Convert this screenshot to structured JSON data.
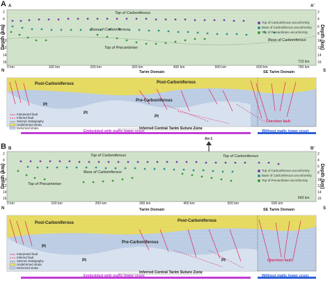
{
  "panels": [
    {
      "label": "A",
      "start": "A",
      "end": "A'",
      "ylabel": "Depth (km)",
      "depth_ticks": [
        "2",
        "4",
        "6",
        "8",
        "10",
        "12",
        "14",
        "16"
      ],
      "x_ticks": [
        "0 km",
        "100 km",
        "200 km",
        "300 km",
        "400 km",
        "500 km",
        "600 km",
        "700 km"
      ],
      "length": "713 km",
      "horizons": {
        "top_carb": "Top of Carboniferous",
        "base_carb": "Base of Carboniferous",
        "top_pre": "Top of Precambrian",
        "base_carb2": "Base of Carboniferous"
      },
      "legend": [
        "Top of Carboniferous unconformity",
        "Base of Carboniferous unconformity",
        "Top of Precambrian unconformity"
      ],
      "n": "N",
      "s": "S",
      "domain_left": "Tarim Domain",
      "domain_right": "SE Tarim Domain",
      "units": {
        "post": "Post-Carboniferous",
        "post2": "Post-Carboniferous",
        "pre": "Pre-Carboniferous",
        "pt": "Pt"
      },
      "fault": "Cherchen fault",
      "suture": "Inferred Central Tarim Suture Zone",
      "crust_left": "Embedded with mafic lower crust",
      "crust_right": "Without mafic lower crust",
      "legend2": [
        "Interpreted fault",
        "Inferred fault",
        "Seismic stratigraphy",
        "Undeformed strata",
        "Deformed strata"
      ]
    },
    {
      "label": "B",
      "start": "B",
      "end": "B'",
      "ylabel": "Depth (km)",
      "depth_ticks": [
        "2",
        "4",
        "6",
        "8",
        "10",
        "12",
        "14",
        "16"
      ],
      "x_ticks": [
        "0 km",
        "100 km",
        "200 km",
        "300 km",
        "400 km",
        "500 km",
        "600 km"
      ],
      "length": "643 km",
      "horizons": {
        "top_carb": "Top of Carboniferous",
        "base_carb": "Base of Carboniferous",
        "top_pre": "Top of Precambrian",
        "top_carb2": "Top of Carboniferous"
      },
      "legend": [
        "Top of Carboniferous unconformity",
        "Base of Carboniferous unconformity",
        "Top of Precambrian unconformity"
      ],
      "n": "N",
      "s": "S",
      "domain_left": "Tarim Domain",
      "domain_right": "SE Tarim Domain",
      "units": {
        "post": "Post-Carboniferous",
        "post2": "Post-Carboniferous",
        "pre": "Pre-Carboniferous",
        "pt": "Pt"
      },
      "fault": "Cherchen fault",
      "suture": "Inferred Central Tarim Suture Zone",
      "crust_left": "Embedded with mafic lower crust",
      "crust_right": "Without mafic lower crust",
      "legend2": [
        "Interpreted fault",
        "Inferred fault",
        "Seismic stratigraphy",
        "Undeformed strata",
        "Deformed strata"
      ],
      "well": "An-1"
    }
  ],
  "colors": {
    "seismic_bg": "#d5e8cf",
    "post": "#f2e86a",
    "pre": "#c9d8ec",
    "pt": "#dfe6f1",
    "fault": "#e0245e",
    "purple_bar": "#c23ad6",
    "blue_bar": "#2f5fd6",
    "dot_green": "#3a9a3a",
    "dot_purple": "#7b3fa8",
    "dot_teal": "#2f8f8f"
  }
}
